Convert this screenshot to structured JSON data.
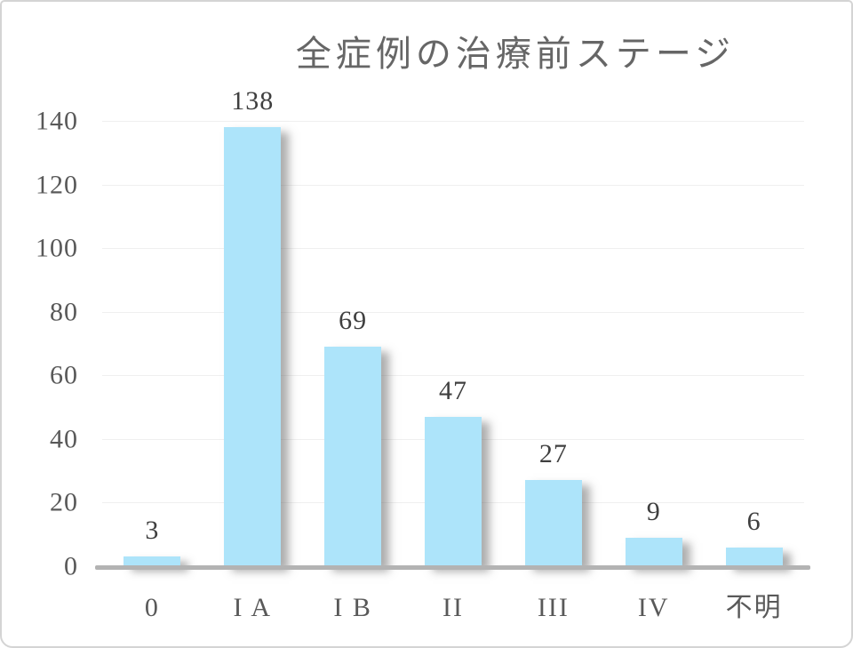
{
  "chart_data": {
    "type": "bar",
    "title": "全症例の治療前ステージ",
    "categories": [
      "0",
      "I A",
      "I B",
      "II",
      "III",
      "IV",
      "不明"
    ],
    "values": [
      3,
      138,
      69,
      47,
      27,
      9,
      6
    ],
    "data_labels": [
      "3",
      "138",
      "69",
      "47",
      "27",
      "9",
      "6"
    ],
    "xlabel": "",
    "ylabel": "",
    "ylim": [
      0,
      140
    ],
    "ytick_step": 20,
    "yticks": [
      "0",
      "20",
      "40",
      "60",
      "80",
      "100",
      "120",
      "140"
    ],
    "grid": true,
    "legend_position": "none",
    "colors": {
      "bar_fill": "#ade4fa",
      "gridline": "#efefef",
      "axis_line": "#b3b3b3",
      "title_text": "#666666",
      "tick_text": "#595959",
      "data_label_text": "#3f3f3f",
      "frame_border": "#d4d4d4",
      "background": "#ffffff"
    }
  }
}
